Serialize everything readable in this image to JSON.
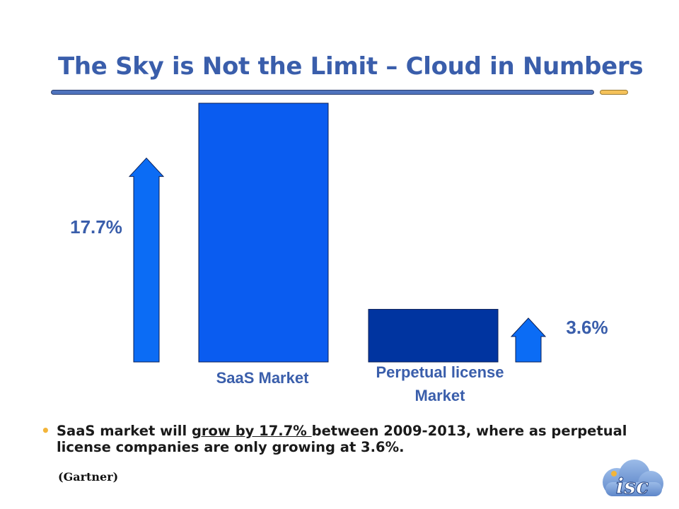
{
  "slide": {
    "title": "The Sky is Not the Limit – Cloud in Numbers",
    "bullet": {
      "before": "SaaS market will ",
      "underlined": "grow by 17.7% ",
      "after": "between 2009-2013, where as perpetual license companies are only growing at 3.6%."
    },
    "source": "(Gartner)",
    "logo_text": "isc"
  },
  "colors": {
    "title": "#3a5eab",
    "arrow": "#0b6cf5",
    "saas_bar": "#0a5cf0",
    "perpetual_bar": "#0034a0",
    "label_blue": "#3a5eab",
    "bullet_dot": "#f3b53a"
  },
  "chart_data": {
    "type": "bar",
    "categories": [
      "SaaS Market",
      "Perpetual license Market"
    ],
    "category_lines": [
      [
        "SaaS Market"
      ],
      [
        "Perpetual license",
        "Market"
      ]
    ],
    "values": [
      17.7,
      3.6
    ],
    "value_labels": [
      "17.7%",
      "3.6%"
    ],
    "ylim": [
      0,
      17.7
    ],
    "title": "",
    "xlabel": "",
    "ylabel": "",
    "grid": false,
    "legend": "none",
    "annotations": "up-arrow beside each bar with growth rate"
  }
}
